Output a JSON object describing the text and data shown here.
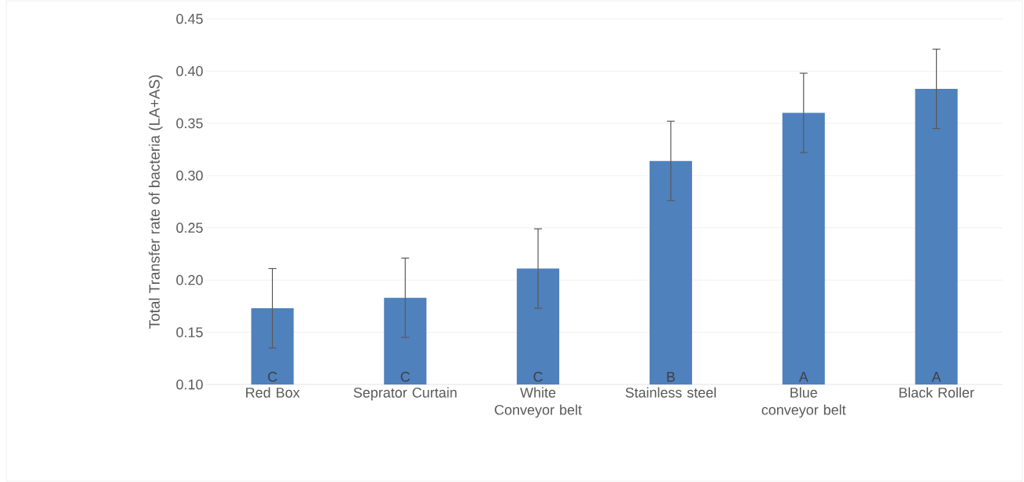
{
  "chart_data": {
    "type": "bar",
    "ylabel": "Total Transfer rate of bacteria (LA+AS)",
    "categories": [
      "Red Box",
      "Seprator Curtain",
      "White Conveyor belt",
      "Stainless steel",
      "Blue conveyor belt",
      "Black Roller"
    ],
    "values": [
      0.173,
      0.183,
      0.211,
      0.314,
      0.36,
      0.383
    ],
    "errors": [
      0.038,
      0.038,
      0.038,
      0.038,
      0.038,
      0.038
    ],
    "color": "#4f81bd",
    "ylim": [
      0.1,
      0.45
    ],
    "yticks": [
      {
        "value": 0.1,
        "label": "0.10"
      },
      {
        "value": 0.15,
        "label": "0.15"
      },
      {
        "value": 0.2,
        "label": "0.20"
      },
      {
        "value": 0.25,
        "label": "0.25"
      },
      {
        "value": 0.3,
        "label": "0.30"
      },
      {
        "value": 0.35,
        "label": "0.35"
      },
      {
        "value": 0.4,
        "label": "0.40"
      },
      {
        "value": 0.45,
        "label": "0.45"
      }
    ],
    "grid": "y",
    "annotations": [
      "C",
      "C",
      "C",
      "B",
      "A",
      "A"
    ]
  }
}
